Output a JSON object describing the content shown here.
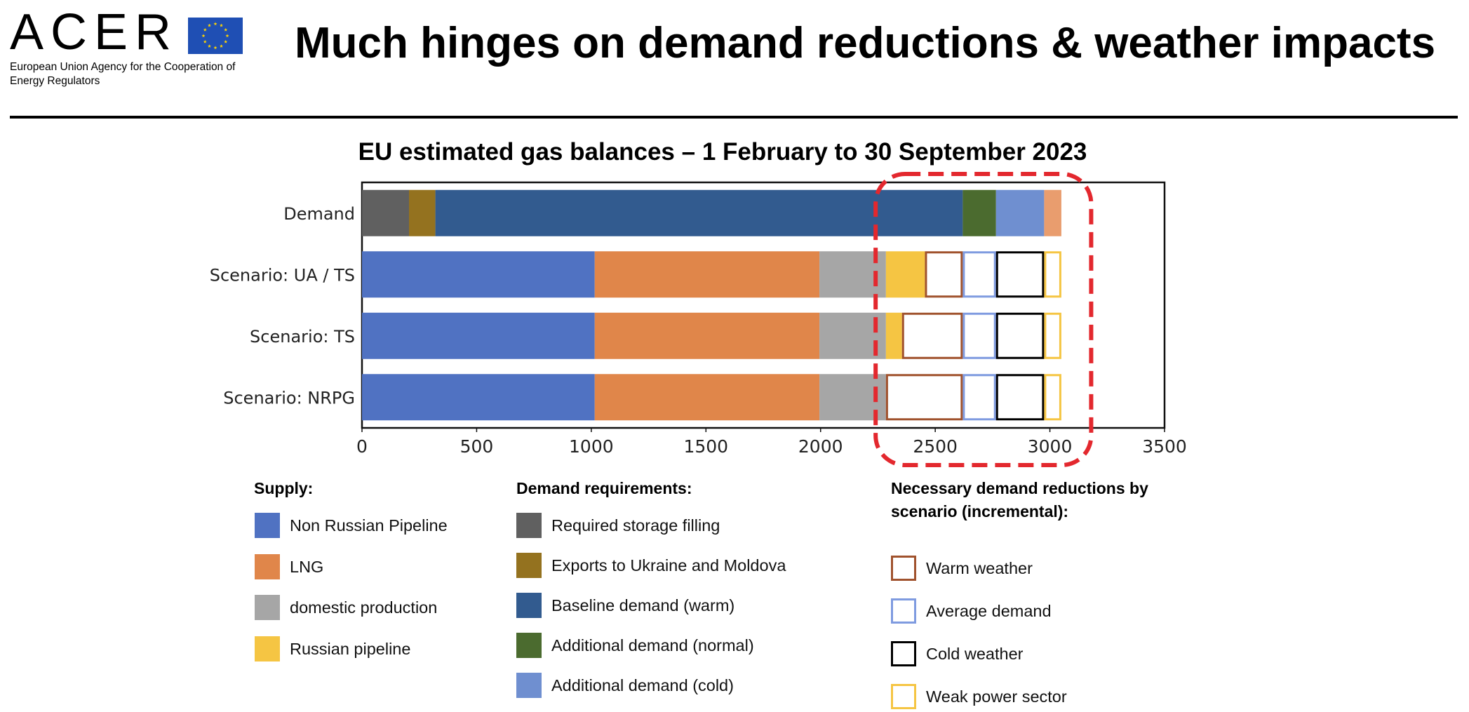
{
  "logo": {
    "wordmark": "ACER",
    "subtitle": "European Union Agency for the Cooperation of Energy Regulators",
    "flag_color": "#1f4fb4",
    "star_color": "#ffd400",
    "flag_icon": "eu-flag-icon"
  },
  "header": {
    "title": "Much hinges on demand reductions & weather impacts"
  },
  "chart_data": {
    "type": "bar",
    "orientation": "horizontal",
    "stacked": true,
    "title": "EU estimated gas balances – 1 February to 30 September 2023",
    "xlabel": "",
    "ylabel": "",
    "xlim": [
      0,
      3500
    ],
    "xticks": [
      0,
      500,
      1000,
      1500,
      2000,
      2500,
      3000,
      3500
    ],
    "grid": false,
    "legend_position": "bottom",
    "categories": [
      "Demand",
      "Scenario: UA / TS",
      "Scenario: TS",
      "Scenario: NRPG"
    ],
    "series": [
      {
        "name": "Required storage filling",
        "group": "demand",
        "style": "filled",
        "color": "#606060",
        "values": [
          205,
          0,
          0,
          0
        ]
      },
      {
        "name": "Exports to Ukraine and Moldova",
        "group": "demand",
        "style": "filled",
        "color": "#94721f",
        "values": [
          115,
          0,
          0,
          0
        ]
      },
      {
        "name": "Baseline demand (warm)",
        "group": "demand",
        "style": "filled",
        "color": "#325b8f",
        "values": [
          2300,
          0,
          0,
          0
        ]
      },
      {
        "name": "Additional demand (normal)",
        "group": "demand",
        "style": "filled",
        "color": "#4b6b2f",
        "values": [
          145,
          0,
          0,
          0
        ]
      },
      {
        "name": "Additional demand (cold)",
        "group": "demand",
        "style": "filled",
        "color": "#6f8fd0",
        "values": [
          210,
          0,
          0,
          0
        ]
      },
      {
        "name": "",
        "group": "demand",
        "style": "filled",
        "color": "#e99d6e",
        "values": [
          75,
          0,
          0,
          0
        ]
      },
      {
        "name": "Non Russian Pipeline",
        "group": "supply",
        "style": "filled",
        "color": "#5072c2",
        "values": [
          0,
          1015,
          1015,
          1015
        ]
      },
      {
        "name": "LNG",
        "group": "supply",
        "style": "filled",
        "color": "#e0864a",
        "values": [
          0,
          980,
          980,
          980
        ]
      },
      {
        "name": "domestic production",
        "group": "supply",
        "style": "filled",
        "color": "#a6a6a6",
        "values": [
          0,
          290,
          290,
          290
        ]
      },
      {
        "name": "Russian pipeline",
        "group": "supply",
        "style": "filled",
        "color": "#f5c543",
        "values": [
          0,
          170,
          70,
          0
        ]
      },
      {
        "name": "Warm weather",
        "group": "reductions",
        "style": "outline",
        "color": "#a0522d",
        "values": [
          0,
          165,
          265,
          335
        ]
      },
      {
        "name": "Average demand",
        "group": "reductions",
        "style": "outline",
        "color": "#7f9be0",
        "values": [
          0,
          145,
          145,
          145
        ]
      },
      {
        "name": "Cold weather",
        "group": "reductions",
        "style": "outline",
        "color": "#000000",
        "values": [
          0,
          210,
          210,
          210
        ]
      },
      {
        "name": "Weak power sector",
        "group": "reductions",
        "style": "outline",
        "color": "#f5c543",
        "values": [
          0,
          75,
          75,
          75
        ]
      }
    ],
    "highlight": {
      "from": 2240,
      "to": 3180,
      "color": "#e3282e",
      "style": "dashed-rounded"
    }
  },
  "legend": {
    "supply": {
      "title": "Supply:",
      "items": [
        {
          "label": "Non Russian Pipeline",
          "color": "#5072c2",
          "style": "filled"
        },
        {
          "label": "LNG",
          "color": "#e0864a",
          "style": "filled"
        },
        {
          "label": "domestic production",
          "color": "#a6a6a6",
          "style": "filled"
        },
        {
          "label": "Russian pipeline",
          "color": "#f5c543",
          "style": "filled"
        }
      ]
    },
    "demand": {
      "title": "Demand requirements:",
      "items": [
        {
          "label": "Required storage filling",
          "color": "#606060",
          "style": "filled"
        },
        {
          "label": "Exports to Ukraine and Moldova",
          "color": "#94721f",
          "style": "filled"
        },
        {
          "label": "Baseline demand (warm)",
          "color": "#325b8f",
          "style": "filled"
        },
        {
          "label": "Additional demand (normal)",
          "color": "#4b6b2f",
          "style": "filled"
        },
        {
          "label": "Additional demand (cold)",
          "color": "#6f8fd0",
          "style": "filled"
        }
      ]
    },
    "reductions": {
      "title": "Necessary demand reductions by scenario (incremental):",
      "items": [
        {
          "label": "Warm weather",
          "color": "#a0522d",
          "style": "outline"
        },
        {
          "label": "Average demand",
          "color": "#7f9be0",
          "style": "outline"
        },
        {
          "label": "Cold weather",
          "color": "#000000",
          "style": "outline"
        },
        {
          "label": "Weak power sector",
          "color": "#f5c543",
          "style": "outline"
        }
      ]
    }
  }
}
